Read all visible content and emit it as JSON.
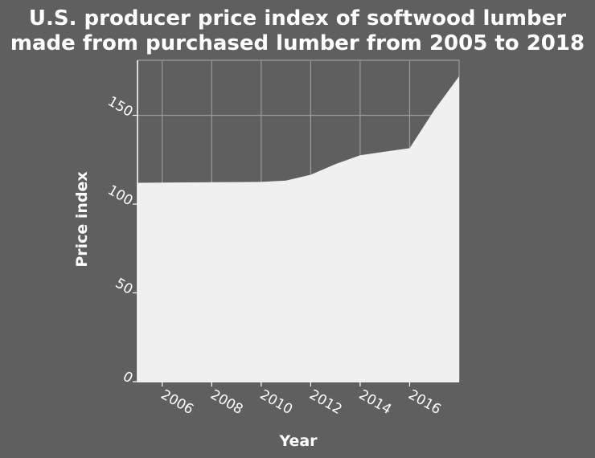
{
  "chart_data": {
    "type": "area",
    "title": "U.S. producer price index of softwood lumber made from purchased lumber from 2005 to 2018",
    "title_lines": [
      "U.S. producer price index of softwood lumber",
      "made from purchased lumber from 2005 to 2018"
    ],
    "xlabel": "Year",
    "ylabel": "Price index",
    "x": [
      2005,
      2006,
      2007,
      2008,
      2009,
      2010,
      2011,
      2012,
      2013,
      2014,
      2015,
      2016,
      2017,
      2018
    ],
    "values": [
      112,
      112.1,
      112.2,
      112.3,
      112.4,
      112.5,
      113.2,
      116.5,
      122.5,
      127.5,
      129.5,
      131.5,
      153,
      172
    ],
    "xlim": [
      2005,
      2018
    ],
    "ylim": [
      0,
      181
    ],
    "x_ticks": [
      2006,
      2008,
      2010,
      2012,
      2014,
      2016
    ],
    "y_ticks": [
      0,
      50,
      100,
      150
    ],
    "grid": true,
    "colors": {
      "background": "#5f5f5f",
      "fill": "#f0f0f0",
      "grid": "#9a9a9a",
      "text": "#ffffff"
    }
  }
}
